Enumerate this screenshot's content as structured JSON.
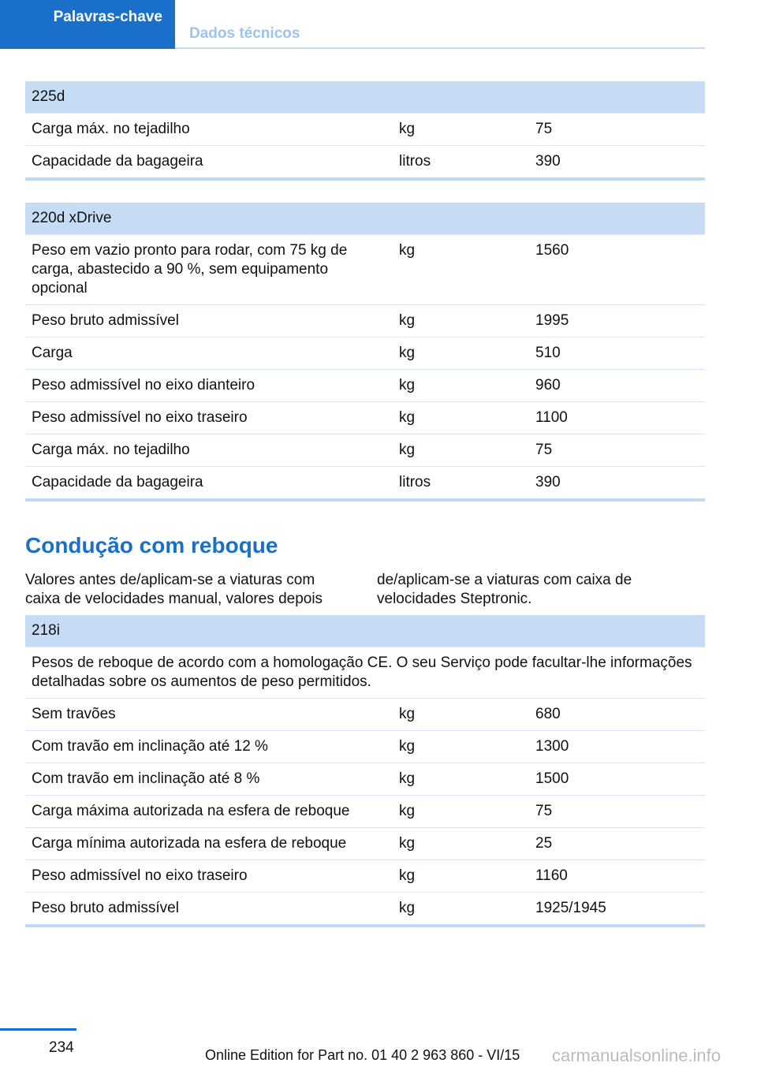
{
  "header": {
    "tabs": [
      "Palavras-chave",
      "Dados técnicos"
    ]
  },
  "tables_top": [
    {
      "title": "225d",
      "rows": [
        [
          "Carga máx. no tejadilho",
          "kg",
          "75"
        ],
        [
          "Capacidade da bagageira",
          "litros",
          "390"
        ]
      ]
    },
    {
      "title": "220d xDrive",
      "rows": [
        [
          "Peso em vazio pronto para rodar, com 75 kg de carga, abastecido a 90 %, sem equipamento opcional",
          "kg",
          "1560"
        ],
        [
          "Peso bruto admissível",
          "kg",
          "1995"
        ],
        [
          "Carga",
          "kg",
          "510"
        ],
        [
          "Peso admissível no eixo dianteiro",
          "kg",
          "960"
        ],
        [
          "Peso admissível no eixo traseiro",
          "kg",
          "1100"
        ],
        [
          "Carga máx. no tejadilho",
          "kg",
          "75"
        ],
        [
          "Capacidade da bagageira",
          "litros",
          "390"
        ]
      ]
    }
  ],
  "section": {
    "title": "Condução com reboque",
    "paragraph": "Valores antes de/aplicam-se a viaturas com caixa de velocidades manual, valores depois de/aplicam-se a viaturas com caixa de velocidades Steptronic.",
    "table": {
      "title": "218i",
      "note": "Pesos de reboque de acordo com a homologação CE. O seu Serviço pode facultar-lhe informações detalhadas sobre os aumentos de peso permitidos.",
      "rows": [
        [
          "Sem travões",
          "kg",
          "680"
        ],
        [
          "Com travão em inclinação até 12 %",
          "kg",
          "1300"
        ],
        [
          "Com travão em inclinação até 8 %",
          "kg",
          "1500"
        ],
        [
          "Carga máxima autorizada na esfera de reboque",
          "kg",
          "75"
        ],
        [
          "Carga mínima autorizada na esfera de reboque",
          "kg",
          "25"
        ],
        [
          "Peso admissível no eixo traseiro",
          "kg",
          "1160"
        ],
        [
          "Peso bruto admissível",
          "kg",
          "1925/1945"
        ]
      ]
    }
  },
  "footer": {
    "page": "234",
    "edition": "Online Edition for Part no. 01 40 2 963 860 - VI/15",
    "watermark": "carmanualsonline.info"
  }
}
